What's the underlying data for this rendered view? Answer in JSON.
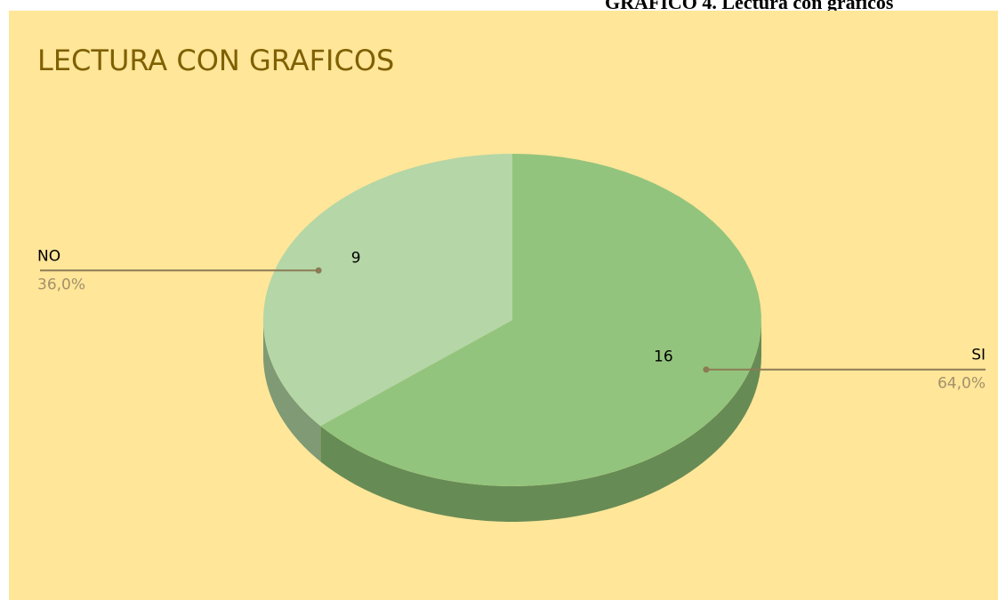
{
  "caption": "GRÁFICO 4. Lectura con gráficos",
  "chart_data": {
    "type": "pie",
    "title": "LECTURA CON GRAFICOS",
    "categories": [
      "SI",
      "NO"
    ],
    "values": [
      16,
      9
    ],
    "percent_labels": [
      "64,0%",
      "36,0%"
    ],
    "colors": [
      "#93C47D",
      "#B5D6A7"
    ],
    "side_colors": [
      "#678B55",
      "#7F9A74"
    ],
    "three_d": true
  }
}
